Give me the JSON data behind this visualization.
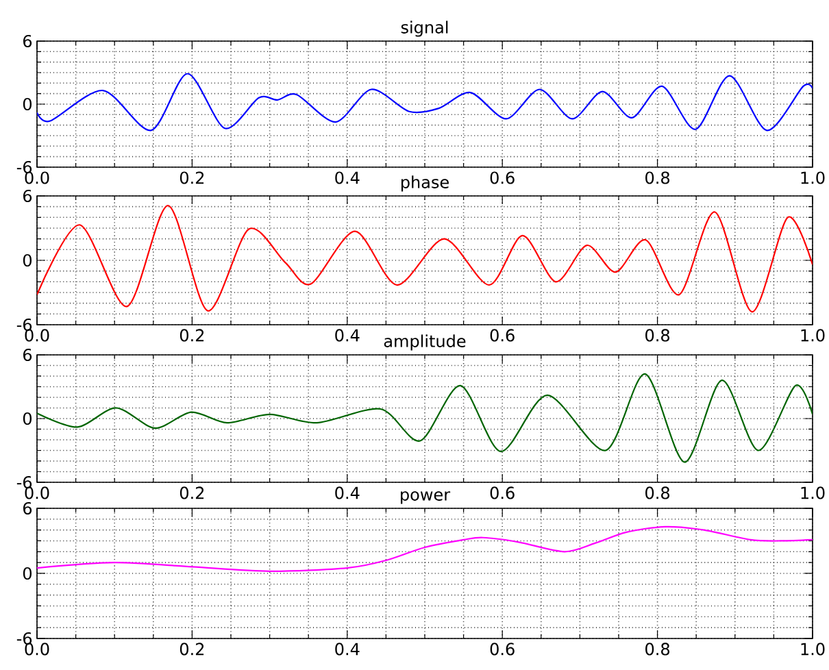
{
  "chart_data": [
    {
      "type": "line",
      "title": "signal",
      "color": "#0000ff",
      "grid": true,
      "xlim": [
        0,
        1
      ],
      "ylim": [
        -6,
        6
      ],
      "xticks": [
        {
          "value": 0,
          "label": "0.0"
        },
        {
          "value": 0.05,
          "label": null
        },
        {
          "value": 0.1,
          "label": null
        },
        {
          "value": 0.15,
          "label": null
        },
        0.2,
        {
          "value": 0.25,
          "label": null
        },
        {
          "value": 0.3,
          "label": null
        },
        {
          "value": 0.35,
          "label": null
        },
        0.4,
        {
          "value": 0.45,
          "label": null
        },
        {
          "value": 0.5,
          "label": null
        },
        {
          "value": 0.55,
          "label": null
        },
        0.6,
        {
          "value": 0.65,
          "label": null
        },
        {
          "value": 0.7,
          "label": null
        },
        {
          "value": 0.75,
          "label": null
        },
        0.8,
        {
          "value": 0.85,
          "label": null
        },
        {
          "value": 0.9,
          "label": null
        },
        {
          "value": 0.95,
          "label": null
        },
        {
          "value": 1,
          "label": "1.0"
        }
      ],
      "yticks": [
        -6,
        {
          "value": -5,
          "label": null
        },
        {
          "value": -4,
          "label": null
        },
        {
          "value": -3,
          "label": null
        },
        {
          "value": -2,
          "label": null
        },
        {
          "value": -1,
          "label": null
        },
        0,
        {
          "value": 1,
          "label": null
        },
        {
          "value": 2,
          "label": null
        },
        {
          "value": 3,
          "label": null
        },
        {
          "value": 4,
          "label": null
        },
        {
          "value": 5,
          "label": null
        },
        6
      ],
      "x": [
        0,
        0.017,
        0.085,
        0.147,
        0.194,
        0.242,
        0.286,
        0.31,
        0.335,
        0.385,
        0.431,
        0.48,
        0.518,
        0.559,
        0.605,
        0.648,
        0.69,
        0.729,
        0.767,
        0.806,
        0.849,
        0.893,
        0.941,
        0.988,
        1.0
      ],
      "values": [
        -0.8,
        -1.6,
        1.3,
        -2.5,
        2.9,
        -2.3,
        0.6,
        0.4,
        0.9,
        -1.7,
        1.4,
        -0.7,
        -0.4,
        1.1,
        -1.4,
        1.4,
        -1.4,
        1.2,
        -1.3,
        1.7,
        -2.4,
        2.7,
        -2.5,
        1.7,
        1.5
      ]
    },
    {
      "type": "line",
      "title": "phase",
      "color": "#ff0000",
      "grid": true,
      "xlim": [
        0,
        1
      ],
      "ylim": [
        -6,
        6
      ],
      "xticks": [
        {
          "value": 0,
          "label": "0.0"
        },
        {
          "value": 0.05,
          "label": null
        },
        {
          "value": 0.1,
          "label": null
        },
        {
          "value": 0.15,
          "label": null
        },
        0.2,
        {
          "value": 0.25,
          "label": null
        },
        {
          "value": 0.3,
          "label": null
        },
        {
          "value": 0.35,
          "label": null
        },
        0.4,
        {
          "value": 0.45,
          "label": null
        },
        {
          "value": 0.5,
          "label": null
        },
        {
          "value": 0.55,
          "label": null
        },
        0.6,
        {
          "value": 0.65,
          "label": null
        },
        {
          "value": 0.7,
          "label": null
        },
        {
          "value": 0.75,
          "label": null
        },
        0.8,
        {
          "value": 0.85,
          "label": null
        },
        {
          "value": 0.9,
          "label": null
        },
        {
          "value": 0.95,
          "label": null
        },
        {
          "value": 1,
          "label": "1.0"
        }
      ],
      "yticks": [
        -6,
        {
          "value": -5,
          "label": null
        },
        {
          "value": -4,
          "label": null
        },
        {
          "value": -3,
          "label": null
        },
        {
          "value": -2,
          "label": null
        },
        {
          "value": -1,
          "label": null
        },
        0,
        {
          "value": 1,
          "label": null
        },
        {
          "value": 2,
          "label": null
        },
        {
          "value": 3,
          "label": null
        },
        {
          "value": 4,
          "label": null
        },
        {
          "value": 5,
          "label": null
        },
        6
      ],
      "x": [
        0,
        0.055,
        0.116,
        0.169,
        0.22,
        0.273,
        0.32,
        0.353,
        0.41,
        0.464,
        0.525,
        0.583,
        0.626,
        0.669,
        0.709,
        0.746,
        0.785,
        0.828,
        0.874,
        0.922,
        0.968,
        1.0
      ],
      "values": [
        -3.2,
        3.3,
        -4.3,
        5.1,
        -4.7,
        2.9,
        -0.2,
        -2.2,
        2.7,
        -2.3,
        2.0,
        -2.3,
        2.3,
        -2.0,
        1.4,
        -1.1,
        1.9,
        -3.2,
        4.5,
        -4.8,
        4.0,
        -0.4
      ]
    },
    {
      "type": "line",
      "title": "amplitude",
      "color": "#006400",
      "grid": true,
      "xlim": [
        0,
        1
      ],
      "ylim": [
        -6,
        6
      ],
      "xticks": [
        {
          "value": 0,
          "label": "0.0"
        },
        {
          "value": 0.05,
          "label": null
        },
        {
          "value": 0.1,
          "label": null
        },
        {
          "value": 0.15,
          "label": null
        },
        0.2,
        {
          "value": 0.25,
          "label": null
        },
        {
          "value": 0.3,
          "label": null
        },
        {
          "value": 0.35,
          "label": null
        },
        0.4,
        {
          "value": 0.45,
          "label": null
        },
        {
          "value": 0.5,
          "label": null
        },
        {
          "value": 0.55,
          "label": null
        },
        0.6,
        {
          "value": 0.65,
          "label": null
        },
        {
          "value": 0.7,
          "label": null
        },
        {
          "value": 0.75,
          "label": null
        },
        0.8,
        {
          "value": 0.85,
          "label": null
        },
        {
          "value": 0.9,
          "label": null
        },
        {
          "value": 0.95,
          "label": null
        },
        {
          "value": 1,
          "label": "1.0"
        }
      ],
      "yticks": [
        -6,
        {
          "value": -5,
          "label": null
        },
        {
          "value": -4,
          "label": null
        },
        {
          "value": -3,
          "label": null
        },
        {
          "value": -2,
          "label": null
        },
        {
          "value": -1,
          "label": null
        },
        0,
        {
          "value": 1,
          "label": null
        },
        {
          "value": 2,
          "label": null
        },
        {
          "value": 3,
          "label": null
        },
        {
          "value": 4,
          "label": null
        },
        {
          "value": 5,
          "label": null
        },
        6
      ],
      "x": [
        0,
        0.052,
        0.102,
        0.152,
        0.199,
        0.245,
        0.3,
        0.361,
        0.443,
        0.494,
        0.546,
        0.598,
        0.658,
        0.733,
        0.784,
        0.835,
        0.883,
        0.93,
        0.978,
        1.0
      ],
      "values": [
        0.5,
        -0.8,
        1.0,
        -0.9,
        0.6,
        -0.4,
        0.4,
        -0.4,
        0.9,
        -2.1,
        3.1,
        -3.1,
        2.2,
        -3.0,
        4.2,
        -4.1,
        3.6,
        -3.0,
        3.1,
        0.4
      ]
    },
    {
      "type": "line",
      "title": "power",
      "color": "#ff00ff",
      "grid": true,
      "xlim": [
        0,
        1
      ],
      "ylim": [
        -6,
        6
      ],
      "xticks": [
        {
          "value": 0,
          "label": "0.0"
        },
        {
          "value": 0.05,
          "label": null
        },
        {
          "value": 0.1,
          "label": null
        },
        {
          "value": 0.15,
          "label": null
        },
        0.2,
        {
          "value": 0.25,
          "label": null
        },
        {
          "value": 0.3,
          "label": null
        },
        {
          "value": 0.35,
          "label": null
        },
        0.4,
        {
          "value": 0.45,
          "label": null
        },
        {
          "value": 0.5,
          "label": null
        },
        {
          "value": 0.55,
          "label": null
        },
        0.6,
        {
          "value": 0.65,
          "label": null
        },
        {
          "value": 0.7,
          "label": null
        },
        {
          "value": 0.75,
          "label": null
        },
        0.8,
        {
          "value": 0.85,
          "label": null
        },
        {
          "value": 0.9,
          "label": null
        },
        {
          "value": 0.95,
          "label": null
        },
        {
          "value": 1,
          "label": "1.0"
        }
      ],
      "yticks": [
        -6,
        {
          "value": -5,
          "label": null
        },
        {
          "value": -4,
          "label": null
        },
        {
          "value": -3,
          "label": null
        },
        {
          "value": -2,
          "label": null
        },
        {
          "value": -1,
          "label": null
        },
        0,
        {
          "value": 1,
          "label": null
        },
        {
          "value": 2,
          "label": null
        },
        {
          "value": 3,
          "label": null
        },
        {
          "value": 4,
          "label": null
        },
        {
          "value": 5,
          "label": null
        },
        6
      ],
      "x": [
        0,
        0.1,
        0.2,
        0.3,
        0.4,
        0.45,
        0.5,
        0.55,
        0.575,
        0.62,
        0.68,
        0.72,
        0.76,
        0.81,
        0.86,
        0.92,
        0.96,
        1.0
      ],
      "values": [
        0.5,
        1.0,
        0.6,
        0.2,
        0.5,
        1.2,
        2.4,
        3.1,
        3.3,
        2.9,
        2.0,
        2.8,
        3.8,
        4.3,
        4.0,
        3.1,
        3.0,
        3.1
      ]
    }
  ]
}
